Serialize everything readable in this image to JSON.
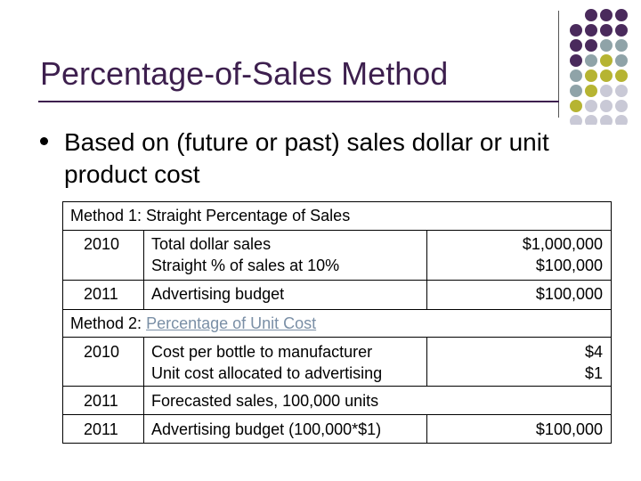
{
  "slide": {
    "title": "Percentage-of-Sales Method",
    "bullet": "Based on (future or past) sales dollar or unit product cost"
  },
  "table": {
    "method1_header": "Method 1: Straight Percentage of Sales",
    "m1": [
      {
        "year": "2010",
        "desc1": "Total dollar sales",
        "desc2": "Straight % of sales at 10%",
        "val1": "$1,000,000",
        "val2": "$100,000"
      },
      {
        "year": "2011",
        "desc1": "Advertising budget",
        "val1": "$100,000"
      }
    ],
    "method2_prefix": "Method 2: ",
    "method2_link": "Percentage of Unit Cost",
    "m2": [
      {
        "year": "2010",
        "desc1": "Cost per bottle to manufacturer",
        "desc2": "Unit cost allocated to advertising",
        "val1": "$4",
        "val2": "$1"
      },
      {
        "year": "2011",
        "desc1": "Forecasted sales, 100,000 units"
      },
      {
        "year": "2011",
        "desc1": "Advertising budget (100,000*$1)",
        "val1": "$100,000"
      }
    ]
  },
  "colors": {
    "title": "#3d1f4e",
    "dot_purple": "#4a2a5c",
    "dot_gray": "#8fa3a8",
    "dot_olive": "#b6b432",
    "dot_light": "#c9c9d6"
  }
}
